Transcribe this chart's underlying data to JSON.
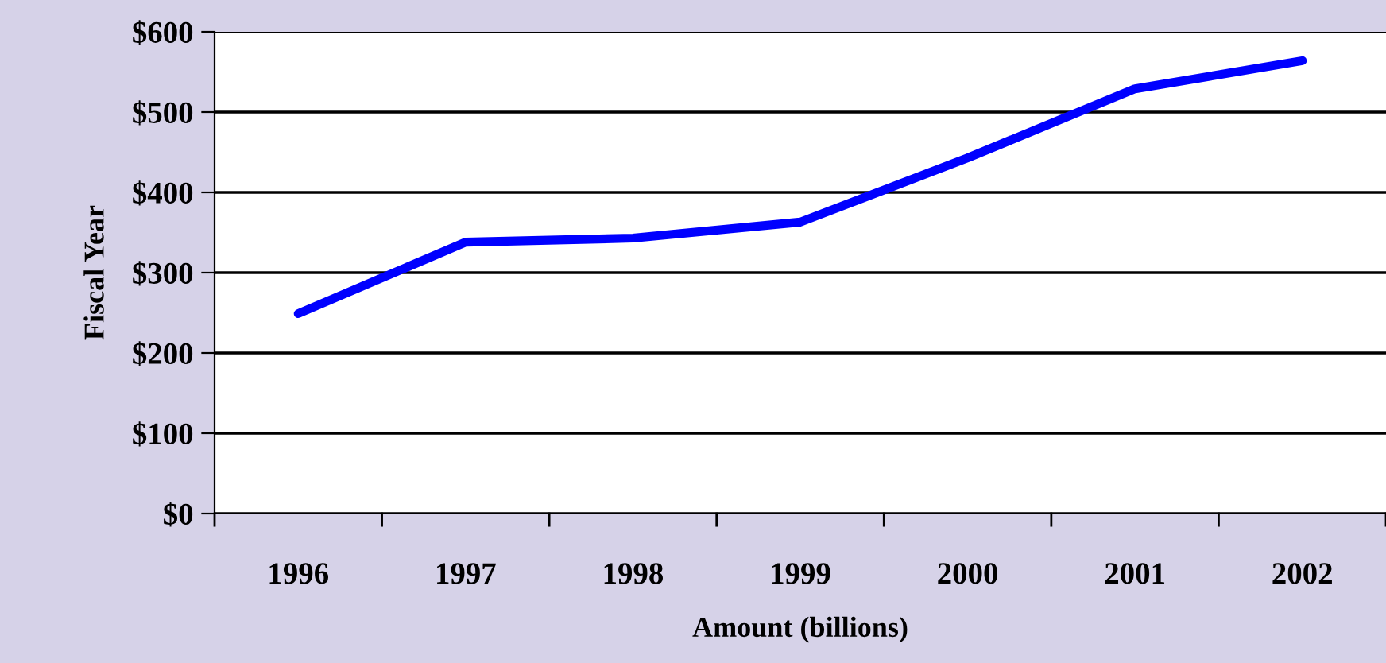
{
  "chart_data": {
    "type": "line",
    "xlabel": "Amount (billions)",
    "ylabel": "Fiscal Year",
    "categories": [
      "1996",
      "1997",
      "1998",
      "1999",
      "2000",
      "2001",
      "2002"
    ],
    "series": [
      {
        "color": "#0000ff",
        "values": [
          249,
          338,
          343,
          363,
          443,
          529,
          564
        ]
      }
    ],
    "ylim": [
      0,
      600
    ],
    "yticks": [
      {
        "value": 0,
        "label": "$0"
      },
      {
        "value": 100,
        "label": "$100"
      },
      {
        "value": 200,
        "label": "$200"
      },
      {
        "value": 300,
        "label": "$300"
      },
      {
        "value": 400,
        "label": "$400"
      },
      {
        "value": 500,
        "label": "$500"
      },
      {
        "value": 600,
        "label": "$600"
      }
    ],
    "grid": "y",
    "legend": false,
    "marker": "none",
    "line_style": "solid"
  }
}
